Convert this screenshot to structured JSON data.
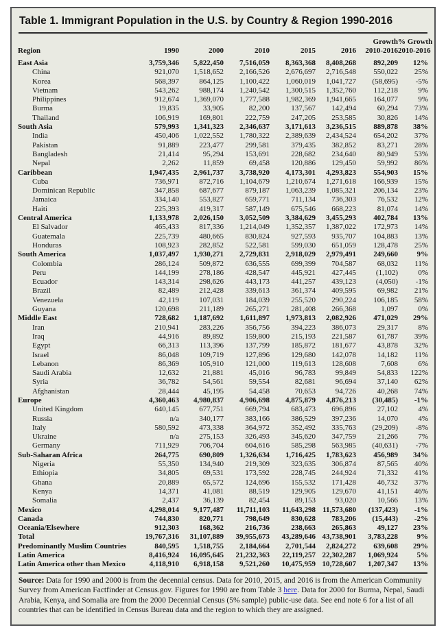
{
  "title": "Table 1. Immigrant Population in the U.S. by Country & Region 1990-2016",
  "table": {
    "columns": [
      {
        "label": "Region",
        "sub": null
      },
      {
        "label": "1990",
        "sub": null
      },
      {
        "label": "2000",
        "sub": null
      },
      {
        "label": "2010",
        "sub": null
      },
      {
        "label": "2015",
        "sub": null
      },
      {
        "label": "2016",
        "sub": null
      },
      {
        "label": "Growth",
        "sub": "2010-2016"
      },
      {
        "label": "% Growth",
        "sub": "2010-2016"
      }
    ],
    "rows": [
      {
        "label": "East Asia",
        "bold": true,
        "indent": false,
        "values": [
          "3,759,346",
          "5,822,450",
          "7,516,059",
          "8,363,368",
          "8,408,268",
          "892,209",
          "12%"
        ]
      },
      {
        "label": "China",
        "bold": false,
        "indent": true,
        "values": [
          "921,070",
          "1,518,652",
          "2,166,526",
          "2,676,697",
          "2,716,548",
          "550,022",
          "25%"
        ]
      },
      {
        "label": "Korea",
        "bold": false,
        "indent": true,
        "values": [
          "568,397",
          "864,125",
          "1,100,422",
          "1,060,019",
          "1,041,727",
          "(58,695)",
          "-5%"
        ]
      },
      {
        "label": "Vietnam",
        "bold": false,
        "indent": true,
        "values": [
          "543,262",
          "988,174",
          "1,240,542",
          "1,300,515",
          "1,352,760",
          "112,218",
          "9%"
        ]
      },
      {
        "label": "Philippines",
        "bold": false,
        "indent": true,
        "values": [
          "912,674",
          "1,369,070",
          "1,777,588",
          "1,982,369",
          "1,941,665",
          "164,077",
          "9%"
        ]
      },
      {
        "label": "Burma",
        "bold": false,
        "indent": true,
        "values": [
          "19,835",
          "33,905",
          "82,200",
          "137,567",
          "142,494",
          "60,294",
          "73%"
        ]
      },
      {
        "label": "Thailand",
        "bold": false,
        "indent": true,
        "values": [
          "106,919",
          "169,801",
          "222,759",
          "247,205",
          "253,585",
          "30,826",
          "14%"
        ]
      },
      {
        "label": "South Asia",
        "bold": true,
        "indent": false,
        "values": [
          "579,993",
          "1,341,323",
          "2,346,637",
          "3,171,613",
          "3,236,515",
          "889,878",
          "38%"
        ]
      },
      {
        "label": "India",
        "bold": false,
        "indent": true,
        "values": [
          "450,406",
          "1,022,552",
          "1,780,322",
          "2,389,639",
          "2,434,524",
          "654,202",
          "37%"
        ]
      },
      {
        "label": "Pakistan",
        "bold": false,
        "indent": true,
        "values": [
          "91,889",
          "223,477",
          "299,581",
          "379,435",
          "382,852",
          "83,271",
          "28%"
        ]
      },
      {
        "label": "Bangladesh",
        "bold": false,
        "indent": true,
        "values": [
          "21,414",
          "95,294",
          "153,691",
          "228,682",
          "234,640",
          "80,949",
          "53%"
        ]
      },
      {
        "label": "Nepal",
        "bold": false,
        "indent": true,
        "values": [
          "2,262",
          "11,859",
          "69,458",
          "120,886",
          "129,450",
          "59,992",
          "86%"
        ]
      },
      {
        "label": "Caribbean",
        "bold": true,
        "indent": false,
        "values": [
          "1,947,435",
          "2,961,737",
          "3,738,920",
          "4,173,301",
          "4,293,823",
          "554,903",
          "15%"
        ]
      },
      {
        "label": "Cuba",
        "bold": false,
        "indent": true,
        "values": [
          "736,971",
          "872,716",
          "1,104,679",
          "1,210,674",
          "1,271,618",
          "166,939",
          "15%"
        ]
      },
      {
        "label": "Dominican Republic",
        "bold": false,
        "indent": true,
        "values": [
          "347,858",
          "687,677",
          "879,187",
          "1,063,239",
          "1,085,321",
          "206,134",
          "23%"
        ]
      },
      {
        "label": "Jamaica",
        "bold": false,
        "indent": true,
        "values": [
          "334,140",
          "553,827",
          "659,771",
          "711,134",
          "736,303",
          "76,532",
          "12%"
        ]
      },
      {
        "label": "Haiti",
        "bold": false,
        "indent": true,
        "values": [
          "225,393",
          "419,317",
          "587,149",
          "675,546",
          "668,223",
          "81,074",
          "14%"
        ]
      },
      {
        "label": "Central America",
        "bold": true,
        "indent": false,
        "values": [
          "1,133,978",
          "2,026,150",
          "3,052,509",
          "3,384,629",
          "3,455,293",
          "402,784",
          "13%"
        ]
      },
      {
        "label": "El Salvador",
        "bold": false,
        "indent": true,
        "values": [
          "465,433",
          "817,336",
          "1,214,049",
          "1,352,357",
          "1,387,022",
          "172,973",
          "14%"
        ]
      },
      {
        "label": "Guatemala",
        "bold": false,
        "indent": true,
        "values": [
          "225,739",
          "480,665",
          "830,824",
          "927,593",
          "935,707",
          "104,883",
          "13%"
        ]
      },
      {
        "label": "Honduras",
        "bold": false,
        "indent": true,
        "values": [
          "108,923",
          "282,852",
          "522,581",
          "599,030",
          "651,059",
          "128,478",
          "25%"
        ]
      },
      {
        "label": "South America",
        "bold": true,
        "indent": false,
        "values": [
          "1,037,497",
          "1,930,271",
          "2,729,831",
          "2,918,029",
          "2,979,491",
          "249,660",
          "9%"
        ]
      },
      {
        "label": "Colombia",
        "bold": false,
        "indent": true,
        "values": [
          "286,124",
          "509,872",
          "636,555",
          "699,399",
          "704,587",
          "68,032",
          "11%"
        ]
      },
      {
        "label": "Peru",
        "bold": false,
        "indent": true,
        "values": [
          "144,199",
          "278,186",
          "428,547",
          "445,921",
          "427,445",
          "(1,102)",
          "0%"
        ]
      },
      {
        "label": "Ecuador",
        "bold": false,
        "indent": true,
        "values": [
          "143,314",
          "298,626",
          "443,173",
          "441,257",
          "439,123",
          "(4,050)",
          "-1%"
        ]
      },
      {
        "label": "Brazil",
        "bold": false,
        "indent": true,
        "values": [
          "82,489",
          "212,428",
          "339,613",
          "361,374",
          "409,595",
          "69,982",
          "21%"
        ]
      },
      {
        "label": "Venezuela",
        "bold": false,
        "indent": true,
        "values": [
          "42,119",
          "107,031",
          "184,039",
          "255,520",
          "290,224",
          "106,185",
          "58%"
        ]
      },
      {
        "label": "Guyana",
        "bold": false,
        "indent": true,
        "values": [
          "120,698",
          "211,189",
          "265,271",
          "281,408",
          "266,368",
          "1,097",
          "0%"
        ]
      },
      {
        "label": "Middle East",
        "bold": true,
        "indent": false,
        "values": [
          "728,682",
          "1,187,692",
          "1,611,897",
          "1,973,813",
          "2,082,926",
          "471,029",
          "29%"
        ]
      },
      {
        "label": "Iran",
        "bold": false,
        "indent": true,
        "values": [
          "210,941",
          "283,226",
          "356,756",
          "394,223",
          "386,073",
          "29,317",
          "8%"
        ]
      },
      {
        "label": "Iraq",
        "bold": false,
        "indent": true,
        "values": [
          "44,916",
          "89,892",
          "159,800",
          "215,193",
          "221,587",
          "61,787",
          "39%"
        ]
      },
      {
        "label": "Egypt",
        "bold": false,
        "indent": true,
        "values": [
          "66,313",
          "113,396",
          "137,799",
          "185,872",
          "181,677",
          "43,878",
          "32%"
        ]
      },
      {
        "label": "Israel",
        "bold": false,
        "indent": true,
        "values": [
          "86,048",
          "109,719",
          "127,896",
          "129,680",
          "142,078",
          "14,182",
          "11%"
        ]
      },
      {
        "label": "Lebanon",
        "bold": false,
        "indent": true,
        "values": [
          "86,369",
          "105,910",
          "121,000",
          "119,613",
          "128,608",
          "7,608",
          "6%"
        ]
      },
      {
        "label": "Saudi Arabia",
        "bold": false,
        "indent": true,
        "values": [
          "12,632",
          "21,881",
          "45,016",
          "96,783",
          "99,849",
          "54,833",
          "122%"
        ]
      },
      {
        "label": "Syria",
        "bold": false,
        "indent": true,
        "values": [
          "36,782",
          "54,561",
          "59,554",
          "82,681",
          "96,694",
          "37,140",
          "62%"
        ]
      },
      {
        "label": "Afghanistan",
        "bold": false,
        "indent": true,
        "values": [
          "28,444",
          "45,195",
          "54,458",
          "70,653",
          "94,726",
          "40,268",
          "74%"
        ]
      },
      {
        "label": "Europe",
        "bold": true,
        "indent": false,
        "values": [
          "4,360,463",
          "4,980,837",
          "4,906,698",
          "4,875,879",
          "4,876,213",
          "(30,485)",
          "-1%"
        ]
      },
      {
        "label": "United Kingdom",
        "bold": false,
        "indent": true,
        "values": [
          "640,145",
          "677,751",
          "669,794",
          "683,473",
          "696,896",
          "27,102",
          "4%"
        ]
      },
      {
        "label": "Russia",
        "bold": false,
        "indent": true,
        "values": [
          "n/a",
          "340,177",
          "383,166",
          "386,529",
          "397,236",
          "14,070",
          "4%"
        ]
      },
      {
        "label": "Italy",
        "bold": false,
        "indent": true,
        "values": [
          "580,592",
          "473,338",
          "364,972",
          "352,492",
          "335,763",
          "(29,209)",
          "-8%"
        ]
      },
      {
        "label": "Ukraine",
        "bold": false,
        "indent": true,
        "values": [
          "n/a",
          "275,153",
          "326,493",
          "345,620",
          "347,759",
          "21,266",
          "7%"
        ]
      },
      {
        "label": "Germany",
        "bold": false,
        "indent": true,
        "values": [
          "711,929",
          "706,704",
          "604,616",
          "585,298",
          "563,985",
          "(40,631)",
          "-7%"
        ]
      },
      {
        "label": "Sub-Saharan Africa",
        "bold": true,
        "indent": false,
        "values": [
          "264,775",
          "690,809",
          "1,326,634",
          "1,716,425",
          "1,783,623",
          "456,989",
          "34%"
        ]
      },
      {
        "label": "Nigeria",
        "bold": false,
        "indent": true,
        "values": [
          "55,350",
          "134,940",
          "219,309",
          "323,635",
          "306,874",
          "87,565",
          "40%"
        ]
      },
      {
        "label": "Ethiopia",
        "bold": false,
        "indent": true,
        "values": [
          "34,805",
          "69,531",
          "173,592",
          "228,745",
          "244,924",
          "71,332",
          "41%"
        ]
      },
      {
        "label": "Ghana",
        "bold": false,
        "indent": true,
        "values": [
          "20,889",
          "65,572",
          "124,696",
          "155,532",
          "171,428",
          "46,732",
          "37%"
        ]
      },
      {
        "label": "Kenya",
        "bold": false,
        "indent": true,
        "values": [
          "14,371",
          "41,081",
          "88,519",
          "129,905",
          "129,670",
          "41,151",
          "46%"
        ]
      },
      {
        "label": "Somalia",
        "bold": false,
        "indent": true,
        "values": [
          "2,437",
          "36,139",
          "82,454",
          "89,153",
          "93,020",
          "10,566",
          "13%"
        ]
      },
      {
        "label": "Mexico",
        "bold": true,
        "indent": false,
        "values": [
          "4,298,014",
          "9,177,487",
          "11,711,103",
          "11,643,298",
          "11,573,680",
          "(137,423)",
          "-1%"
        ]
      },
      {
        "label": "Canada",
        "bold": true,
        "indent": false,
        "values": [
          "744,830",
          "820,771",
          "798,649",
          "830,628",
          "783,206",
          "(15,443)",
          "-2%"
        ]
      },
      {
        "label": "Oceania/Elsewhere",
        "bold": true,
        "indent": false,
        "values": [
          "912,303",
          "168,362",
          "216,736",
          "238,663",
          "265,863",
          "49,127",
          "23%"
        ]
      },
      {
        "label": "Total",
        "bold": true,
        "indent": false,
        "values": [
          "19,767,316",
          "31,107,889",
          "39,955,673",
          "43,289,646",
          "43,738,901",
          "3,783,228",
          "9%"
        ]
      },
      {
        "label": "Predominantly Muslim Countries",
        "bold": true,
        "indent": false,
        "values": [
          "840,595",
          "1,518,755",
          "2,184,664",
          "2,701,544",
          "2,824,272",
          "639,608",
          "29%"
        ]
      },
      {
        "label": "Latin America",
        "bold": true,
        "indent": false,
        "values": [
          "8,416,924",
          "16,095,645",
          "21,232,363",
          "22,119,257",
          "22,302,287",
          "1,069,924",
          "5%"
        ]
      },
      {
        "label": "Latin America other than Mexico",
        "bold": true,
        "indent": false,
        "values": [
          "4,118,910",
          "6,918,158",
          "9,521,260",
          "10,475,959",
          "10,728,607",
          "1,207,347",
          "13%"
        ]
      }
    ]
  },
  "footer": {
    "label": "Source:",
    "text_before_link": " Data for 1990 and 2000 is from the decennial census.  Data for 2010, 2015, and 2016 is from the American Community Survey from American Factfinder at Census.gov. Figures for 1990 are from Table 3 ",
    "link_text": "here",
    "text_after_link": ". Data for 2000 for Burma, Nepal, Saudi Arabia, Kenya, and Somalia are from the 2000 Decennial Census (5% sample) public-use data. See end note 6 for a list of all countries that can be identified in Census Bureau data and the region to which they are assigned."
  },
  "colors": {
    "box_background": "#e9eae2",
    "box_border": "#545557",
    "text": "#141414",
    "link": "#3134d0"
  }
}
